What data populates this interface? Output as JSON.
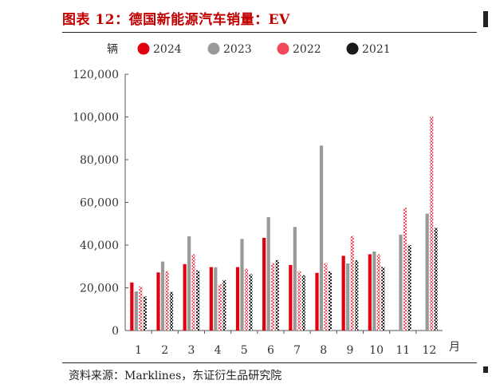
{
  "title": "图表 12：德国新能源汽车销量：EV",
  "source": "资料来源：Marklines，东证衍生品研究院",
  "chart_data": {
    "type": "bar",
    "title": "图表 12：德国新能源汽车销量：EV",
    "ylabel": "辆",
    "xlabel": "月",
    "ylim": [
      0,
      120000
    ],
    "yticks": [
      "0",
      "20,000",
      "40,000",
      "60,000",
      "80,000",
      "100,000",
      "120,000"
    ],
    "legend": "top",
    "grid": false,
    "categories": [
      "1",
      "2",
      "3",
      "4",
      "5",
      "6",
      "7",
      "8",
      "9",
      "10",
      "11",
      "12"
    ],
    "series": [
      {
        "name": "2024",
        "color": "#e00010",
        "pattern": "solid",
        "values": [
          22500,
          27200,
          31100,
          29700,
          29700,
          43400,
          30700,
          27000,
          35000,
          35700,
          null,
          null
        ]
      },
      {
        "name": "2023",
        "color": "#999999",
        "pattern": "solid",
        "values": [
          18300,
          32300,
          44100,
          29600,
          42900,
          53100,
          48500,
          86600,
          31400,
          37000,
          44900,
          54700
        ]
      },
      {
        "name": "2022",
        "color": "#f04a5a",
        "pattern": "dotted",
        "values": [
          20700,
          27800,
          35700,
          21700,
          28900,
          31500,
          27800,
          31600,
          44300,
          35700,
          57500,
          100200
        ]
      },
      {
        "name": "2021",
        "color": "#1a1a1a",
        "pattern": "dotted",
        "values": [
          16000,
          18100,
          28200,
          23600,
          26400,
          33000,
          25900,
          27700,
          32900,
          29800,
          40000,
          48100
        ]
      }
    ]
  }
}
